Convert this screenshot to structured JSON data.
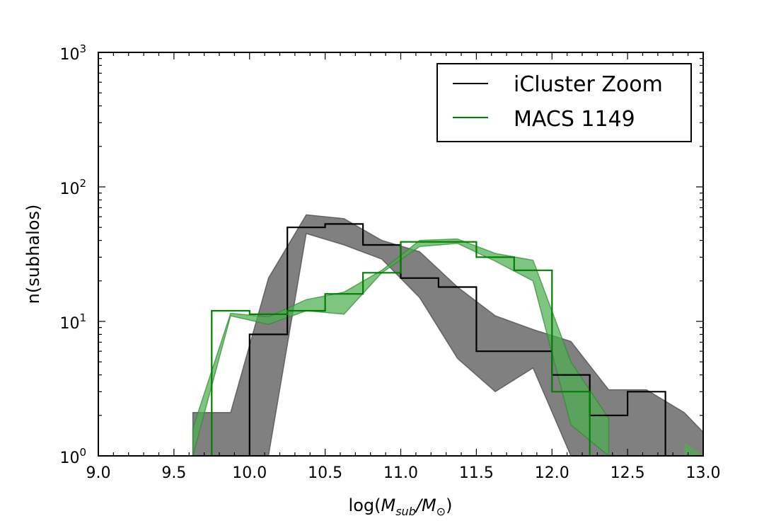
{
  "chart_data": {
    "type": "line",
    "xlabel": "log(M_sub/M_⊙)",
    "xlabel_parts": {
      "prefix": "log(",
      "m1": "M",
      "sub1": "sub",
      "slash": "/",
      "m2": "M",
      "sub2": "⊙",
      "suffix": ")"
    },
    "ylabel": "n(subhalos)",
    "xlim": [
      9.0,
      13.0
    ],
    "ylim": [
      1,
      1000
    ],
    "yscale": "log",
    "x_ticks": [
      "9.0",
      "9.5",
      "10.0",
      "10.5",
      "11.0",
      "11.5",
      "12.0",
      "12.5",
      "13.0"
    ],
    "y_ticks": [
      {
        "value": 1,
        "base": "10",
        "exp": "0"
      },
      {
        "value": 10,
        "base": "10",
        "exp": "1"
      },
      {
        "value": 100,
        "base": "10",
        "exp": "2"
      },
      {
        "value": 1000,
        "base": "10",
        "exp": "3"
      }
    ],
    "legend": {
      "placement": "top-right"
    },
    "series": [
      {
        "name": "iCluster Zoom",
        "color": "#000000",
        "style": "step",
        "edges": [
          10.0,
          10.25,
          10.5,
          10.75,
          11.0,
          11.25,
          11.5,
          12.0,
          12.25,
          12.5,
          12.75
        ],
        "values": [
          8,
          50,
          53,
          37,
          21,
          18,
          6,
          4,
          2,
          3
        ],
        "band": {
          "color": "#808080",
          "x": [
            9.625,
            9.875,
            10.125,
            10.375,
            10.625,
            10.875,
            11.125,
            11.375,
            11.625,
            11.875,
            12.125,
            12.375,
            12.625,
            12.875,
            13.0
          ],
          "lower": [
            1,
            1,
            1,
            45,
            37,
            29,
            15,
            5.3,
            3.0,
            4.5,
            1,
            1,
            1,
            1,
            1
          ],
          "upper": [
            2.1,
            2.1,
            21,
            62,
            58,
            40,
            33,
            18,
            11,
            8.7,
            7.1,
            3.1,
            3.1,
            2.1,
            1.5
          ]
        }
      },
      {
        "name": "MACS 1149",
        "color": "#008000",
        "style": "step",
        "edges": [
          9.75,
          10.0,
          10.25,
          10.5,
          10.75,
          11.0,
          11.5,
          11.75,
          12.0,
          12.25
        ],
        "values": [
          12,
          11.3,
          12,
          16,
          23,
          39,
          30,
          24,
          3
        ],
        "band": {
          "color": "#4caf50",
          "x": [
            9.625,
            9.875,
            10.125,
            10.375,
            10.625,
            10.875,
            11.125,
            11.375,
            11.625,
            11.875,
            12.125,
            12.375
          ],
          "lower": [
            1,
            11,
            9.5,
            12,
            11.3,
            23,
            36,
            38,
            28,
            20,
            1.7,
            1
          ],
          "upper": [
            1.6,
            11.5,
            10.8,
            14.5,
            16.5,
            24,
            40,
            41,
            32,
            28.5,
            5.0,
            1.9
          ]
        },
        "band_extra": {
          "x": [
            12.875,
            13.0
          ],
          "lower": [
            1,
            1
          ],
          "upper": [
            1.25,
            1.0
          ]
        }
      }
    ]
  }
}
